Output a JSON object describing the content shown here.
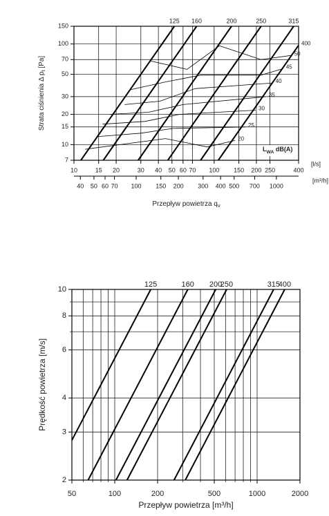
{
  "chart_data": [
    {
      "type": "line",
      "log_x": true,
      "log_y": true,
      "grid": true,
      "x_label": {
        "text": "Przepływ powietrza q",
        "sub": "v"
      },
      "y_label": {
        "text": "Strata ciśnienia Δ p",
        "sub": "t",
        "rest": "  [Pa]"
      },
      "x_unit": "[l/s]",
      "x2_unit": "[m³/h]",
      "xlim": [
        10,
        400
      ],
      "ylim": [
        7,
        150
      ],
      "xticks": [
        10,
        15,
        20,
        30,
        40,
        50,
        60,
        70,
        100,
        150,
        200,
        250,
        400
      ],
      "yticks": [
        7,
        10,
        15,
        20,
        30,
        50,
        70,
        100,
        150
      ],
      "x2lim": [
        36,
        1440
      ],
      "x2ticks": [
        40,
        50,
        60,
        70,
        100,
        150,
        200,
        300,
        400,
        500,
        700,
        1000
      ],
      "annotation": {
        "text": "L",
        "sub": "WA",
        "rest": " dB(A)"
      },
      "series": [
        {
          "name": "125",
          "color": "#000000",
          "width": 2,
          "x": [
            11.2,
            52
          ],
          "values": [
            7,
            150
          ]
        },
        {
          "name": "160",
          "color": "#000000",
          "width": 2,
          "x": [
            16.2,
            75
          ],
          "values": [
            7,
            150
          ]
        },
        {
          "name": "200",
          "color": "#000000",
          "width": 2,
          "x": [
            28.7,
            133
          ],
          "values": [
            7,
            150
          ]
        },
        {
          "name": "250",
          "color": "#000000",
          "width": 2,
          "x": [
            46.7,
            216
          ],
          "values": [
            7,
            150
          ]
        },
        {
          "name": "315",
          "color": "#000000",
          "width": 2,
          "x": [
            80,
            369
          ],
          "values": [
            7,
            150
          ]
        },
        {
          "name": "400",
          "color": "#000000",
          "width": 2,
          "x": [
            107,
            400
          ],
          "values": [
            7,
            97
          ]
        },
        {
          "name": "50",
          "color": "#000000",
          "width": 0.8,
          "x": [
            35,
            64,
            109,
            216,
            356
          ],
          "values": [
            68,
            56,
            96,
            70,
            77
          ]
        },
        {
          "name": "45",
          "color": "#000000",
          "width": 0.8,
          "x": [
            25,
            45,
            80,
            216,
            311
          ],
          "values": [
            35,
            42,
            49,
            49,
            57
          ]
        },
        {
          "name": "40",
          "color": "#000000",
          "width": 0.8,
          "x": [
            23,
            41,
            73,
            262
          ],
          "values": [
            25,
            27,
            36,
            41
          ]
        },
        {
          "name": "35",
          "color": "#000000",
          "width": 0.8,
          "x": [
            18,
            34,
            60,
            234
          ],
          "values": [
            20,
            21,
            25,
            30
          ]
        },
        {
          "name": "30",
          "color": "#000000",
          "width": 0.8,
          "x": [
            16,
            32,
            57,
            198
          ],
          "values": [
            16,
            17,
            20,
            22
          ]
        },
        {
          "name": "25",
          "color": "#000000",
          "width": 0.8,
          "x": [
            14.5,
            30,
            51,
            167
          ],
          "values": [
            12,
            13,
            14.5,
            15
          ]
        },
        {
          "name": "20",
          "color": "#000000",
          "width": 0.8,
          "x": [
            12,
            45,
            89,
            141
          ],
          "values": [
            9,
            11.5,
            9.5,
            11
          ]
        }
      ]
    },
    {
      "type": "line",
      "log_x": true,
      "log_y": true,
      "grid": true,
      "x_label": {
        "text": "Przepływ powietrza [m³/h]"
      },
      "y_label": {
        "text": "Prędkość powietrza [m/s]"
      },
      "xlim": [
        50,
        2000
      ],
      "ylim": [
        2,
        10
      ],
      "xticks": [
        50,
        100,
        200,
        500,
        1000,
        2000
      ],
      "yticks": [
        2,
        3,
        4,
        6,
        8,
        10
      ],
      "x_minor_ticks": [
        60,
        70,
        80,
        90,
        300,
        400,
        600,
        700,
        800,
        900
      ],
      "y_minor_ticks": [
        7,
        9
      ],
      "series": [
        {
          "name": "125",
          "color": "#000000",
          "width": 2,
          "x": [
            50,
            179
          ],
          "values": [
            2.8,
            10
          ]
        },
        {
          "name": "160",
          "color": "#000000",
          "width": 2,
          "x": [
            65,
            326
          ],
          "values": [
            2,
            10
          ]
        },
        {
          "name": "200",
          "color": "#000000",
          "width": 2,
          "x": [
            102,
            512
          ],
          "values": [
            2,
            10
          ]
        },
        {
          "name": "250",
          "color": "#000000",
          "width": 2,
          "x": [
            122,
            611
          ],
          "values": [
            2,
            10
          ]
        },
        {
          "name": "315",
          "color": "#000000",
          "width": 2,
          "x": [
            261,
            1306
          ],
          "values": [
            2,
            10
          ]
        },
        {
          "name": "400",
          "color": "#000000",
          "width": 2,
          "x": [
            313,
            1563
          ],
          "values": [
            2,
            10
          ]
        }
      ]
    }
  ]
}
